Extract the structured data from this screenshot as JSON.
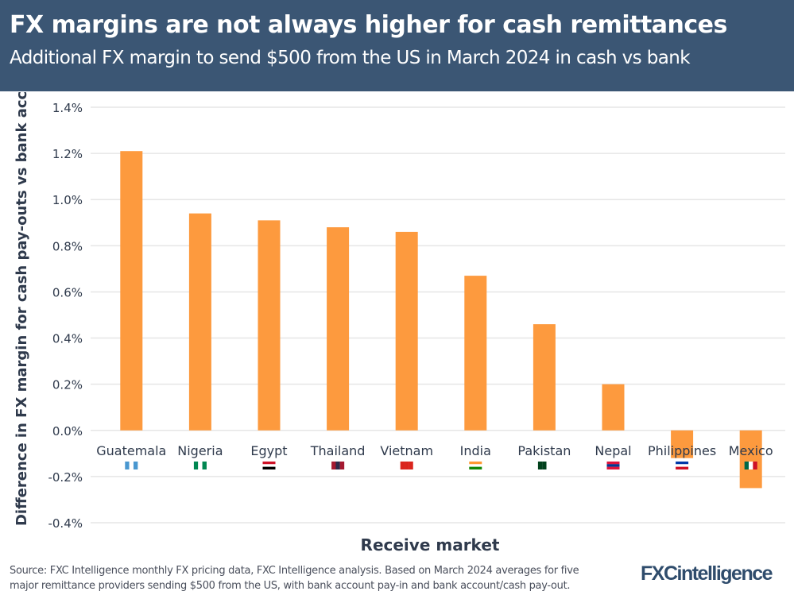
{
  "header": {
    "title": "FX margins are not always higher for cash remittances",
    "subtitle": "Additional FX margin to send $500 from the US in March 2024 in cash vs bank"
  },
  "chart_data": {
    "type": "bar",
    "title": "FX margins are not always higher for cash remittances",
    "subtitle": "Additional FX margin to send $500 from the US in March 2024 in cash vs bank",
    "xlabel": "Receive market",
    "ylabel": "Difference in FX margin for cash pay-outs vs bank acc.",
    "categories": [
      "Guatemala",
      "Nigeria",
      "Egypt",
      "Thailand",
      "Vietnam",
      "India",
      "Pakistan",
      "Nepal",
      "Philippines",
      "Mexico"
    ],
    "values": [
      1.21,
      0.94,
      0.91,
      0.88,
      0.86,
      0.67,
      0.46,
      0.2,
      -0.12,
      -0.25
    ],
    "unit": "%",
    "ylim": [
      -0.4,
      1.4
    ],
    "yticks": [
      -0.4,
      -0.2,
      0.0,
      0.2,
      0.4,
      0.6,
      0.8,
      1.0,
      1.2,
      1.4
    ],
    "ytick_labels": [
      "-0.4%",
      "-0.2%",
      "0.0%",
      "0.2%",
      "0.4%",
      "0.6%",
      "0.8%",
      "1.0%",
      "1.2%",
      "1.4%"
    ],
    "grid": true,
    "bar_color": "#fd9a3e",
    "flags": [
      "guatemala-flag",
      "nigeria-flag",
      "egypt-flag",
      "thailand-flag",
      "vietnam-flag",
      "india-flag",
      "pakistan-flag",
      "nepal-flag",
      "philippines-flag",
      "mexico-flag"
    ]
  },
  "footer": {
    "source": "Source: FXC Intelligence monthly FX pricing data, FXC Intelligence analysis. Based on March 2024 averages for five",
    "source2": "major remittance providers sending $500 from the US, with bank account pay-in and bank account/cash pay-out.",
    "logo": "FXCintelligence"
  },
  "colors": {
    "header_bg": "#3b5674",
    "bar": "#fd9a3e",
    "text": "#2f3a4c"
  }
}
